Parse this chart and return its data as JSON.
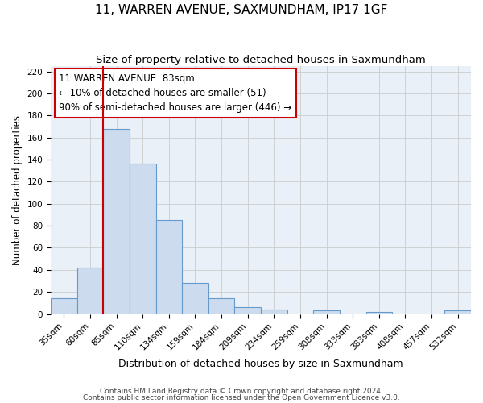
{
  "title": "11, WARREN AVENUE, SAXMUNDHAM, IP17 1GF",
  "subtitle": "Size of property relative to detached houses in Saxmundham",
  "xlabel": "Distribution of detached houses by size in Saxmundham",
  "ylabel": "Number of detached properties",
  "bar_values": [
    14,
    42,
    168,
    136,
    85,
    28,
    14,
    6,
    4,
    0,
    3,
    0,
    2,
    0,
    0,
    3
  ],
  "bar_labels": [
    "35sqm",
    "60sqm",
    "85sqm",
    "110sqm",
    "134sqm",
    "159sqm",
    "184sqm",
    "209sqm",
    "234sqm",
    "259sqm",
    "308sqm",
    "333sqm",
    "383sqm",
    "408sqm",
    "457sqm",
    "532sqm"
  ],
  "bar_color": "#ccdcee",
  "bar_edge_color": "#6699cc",
  "bar_width": 1.0,
  "ylim": [
    0,
    225
  ],
  "yticks": [
    0,
    20,
    40,
    60,
    80,
    100,
    120,
    140,
    160,
    180,
    200,
    220
  ],
  "property_line_color": "#cc0000",
  "annotation_box_text": "11 WARREN AVENUE: 83sqm\n← 10% of detached houses are smaller (51)\n90% of semi-detached houses are larger (446) →",
  "annotation_box_edge_color": "#cc0000",
  "annotation_box_bg": "#ffffff",
  "footer_line1": "Contains HM Land Registry data © Crown copyright and database right 2024.",
  "footer_line2": "Contains public sector information licensed under the Open Government Licence v3.0.",
  "grid_color": "#cccccc",
  "plot_bg_color": "#eaf0f8",
  "background_color": "#ffffff",
  "title_fontsize": 11,
  "subtitle_fontsize": 9.5,
  "xlabel_fontsize": 9,
  "ylabel_fontsize": 8.5,
  "tick_fontsize": 7.5,
  "annotation_fontsize": 8.5,
  "footer_fontsize": 6.5
}
